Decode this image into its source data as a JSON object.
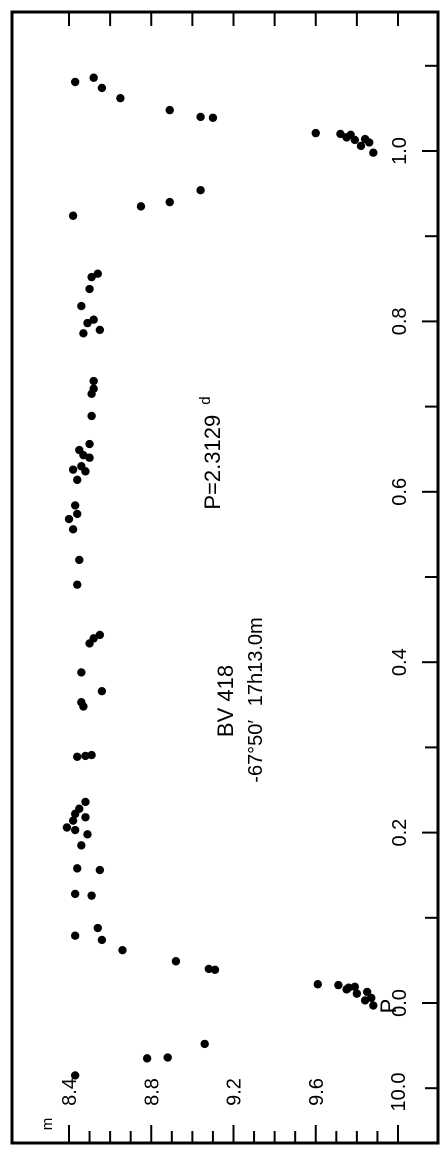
{
  "chart_data": {
    "type": "scatter",
    "orientation": "rotated-90-ccw",
    "title": "BV 418",
    "coordinates": {
      "dec": "-67°50′",
      "ra": "17h13.0m"
    },
    "period": {
      "prefix": "P=",
      "value": "2.3129",
      "unit": "d"
    },
    "xlabel": "P",
    "ylabel": "m",
    "xlim": [
      -0.15,
      1.12
    ],
    "ylim": [
      10.0,
      8.4
    ],
    "x_ticks": [
      {
        "value": 0.0,
        "label": "0.0"
      },
      {
        "value": 0.2,
        "label": "0.2"
      },
      {
        "value": 0.4,
        "label": "0.4"
      },
      {
        "value": 0.6,
        "label": "0.6"
      },
      {
        "value": 0.8,
        "label": "0.8"
      },
      {
        "value": 1.0,
        "label": "1.0"
      }
    ],
    "y_ticks": [
      {
        "value": 8.4,
        "label": "8.4"
      },
      {
        "value": 8.8,
        "label": "8.8"
      },
      {
        "value": 9.2,
        "label": "9.2"
      },
      {
        "value": 9.6,
        "label": "9.6"
      },
      {
        "value": 10.0,
        "label": "10.0"
      }
    ],
    "grid": false,
    "series": [
      {
        "color": "#000000",
        "points": [
          [
            -0.085,
            8.43
          ],
          [
            -0.065,
            8.78
          ],
          [
            -0.064,
            8.88
          ],
          [
            -0.048,
            9.06
          ],
          [
            -0.003,
            9.88
          ],
          [
            0.003,
            9.84
          ],
          [
            0.006,
            9.87
          ],
          [
            0.011,
            9.8
          ],
          [
            0.013,
            9.85
          ],
          [
            0.016,
            9.75
          ],
          [
            0.018,
            9.76
          ],
          [
            0.019,
            9.79
          ],
          [
            0.021,
            9.71
          ],
          [
            0.022,
            9.61
          ],
          [
            0.039,
            9.11
          ],
          [
            0.04,
            9.08
          ],
          [
            0.049,
            8.92
          ],
          [
            0.062,
            8.66
          ],
          [
            0.074,
            8.56
          ],
          [
            0.079,
            8.43
          ],
          [
            0.088,
            8.54
          ],
          [
            0.126,
            8.51
          ],
          [
            0.128,
            8.43
          ],
          [
            0.156,
            8.55
          ],
          [
            0.158,
            8.44
          ],
          [
            0.185,
            8.46
          ],
          [
            0.198,
            8.49
          ],
          [
            0.203,
            8.43
          ],
          [
            0.206,
            8.39
          ],
          [
            0.214,
            8.42
          ],
          [
            0.218,
            8.48
          ],
          [
            0.222,
            8.43
          ],
          [
            0.228,
            8.45
          ],
          [
            0.236,
            8.48
          ],
          [
            0.289,
            8.44
          ],
          [
            0.29,
            8.48
          ],
          [
            0.291,
            8.51
          ],
          [
            0.348,
            8.47
          ],
          [
            0.353,
            8.46
          ],
          [
            0.366,
            8.56
          ],
          [
            0.388,
            8.46
          ],
          [
            0.422,
            8.5
          ],
          [
            0.428,
            8.52
          ],
          [
            0.432,
            8.55
          ],
          [
            0.491,
            8.44
          ],
          [
            0.52,
            8.45
          ],
          [
            0.556,
            8.42
          ],
          [
            0.568,
            8.4
          ],
          [
            0.574,
            8.44
          ],
          [
            0.584,
            8.43
          ],
          [
            0.614,
            8.44
          ],
          [
            0.624,
            8.48
          ],
          [
            0.626,
            8.42
          ],
          [
            0.63,
            8.46
          ],
          [
            0.64,
            8.5
          ],
          [
            0.643,
            8.47
          ],
          [
            0.649,
            8.45
          ],
          [
            0.656,
            8.5
          ],
          [
            0.689,
            8.51
          ],
          [
            0.715,
            8.51
          ],
          [
            0.721,
            8.52
          ],
          [
            0.73,
            8.52
          ],
          [
            0.786,
            8.47
          ],
          [
            0.79,
            8.55
          ],
          [
            0.798,
            8.49
          ],
          [
            0.802,
            8.52
          ],
          [
            0.818,
            8.46
          ],
          [
            0.838,
            8.5
          ],
          [
            0.852,
            8.51
          ],
          [
            0.856,
            8.54
          ],
          [
            0.924,
            8.42
          ],
          [
            0.935,
            8.75
          ],
          [
            0.94,
            8.89
          ],
          [
            0.954,
            9.04
          ],
          [
            0.998,
            9.88
          ],
          [
            1.006,
            9.82
          ],
          [
            1.01,
            9.86
          ],
          [
            1.013,
            9.79
          ],
          [
            1.014,
            9.84
          ],
          [
            1.016,
            9.75
          ],
          [
            1.019,
            9.77
          ],
          [
            1.02,
            9.72
          ],
          [
            1.021,
            9.6
          ],
          [
            1.039,
            9.1
          ],
          [
            1.04,
            9.04
          ],
          [
            1.048,
            8.89
          ],
          [
            1.062,
            8.65
          ],
          [
            1.074,
            8.56
          ],
          [
            1.081,
            8.43
          ],
          [
            1.086,
            8.52
          ]
        ]
      }
    ]
  }
}
